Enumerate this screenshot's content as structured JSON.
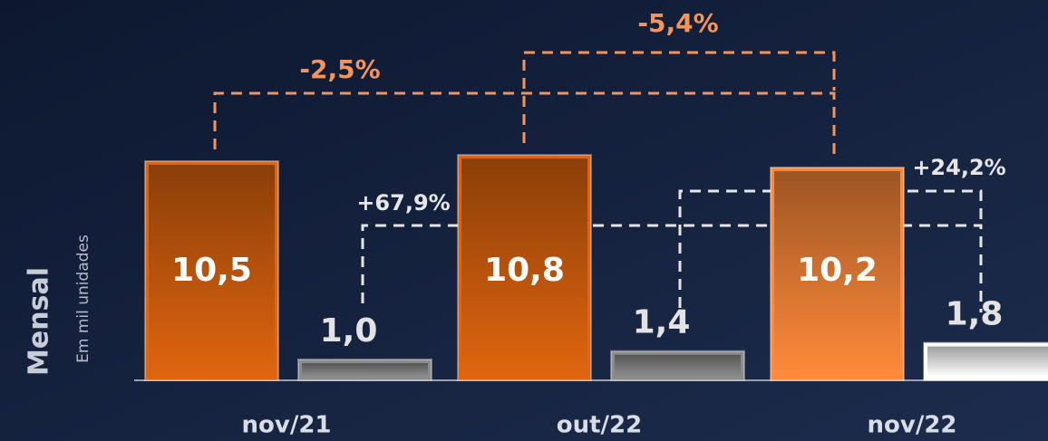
{
  "chart_data": {
    "type": "bar",
    "axis_title": "Mensal",
    "axis_subtitle": "Em mil unidades",
    "categories": [
      "nov/21",
      "out/22",
      "nov/22"
    ],
    "series": [
      {
        "colors": [
          "#e0650f",
          "#e0650f",
          "#ff8a3a"
        ],
        "values": [
          10.5,
          10.8,
          10.2
        ],
        "value_labels": [
          "10,5",
          "10,8",
          "10,2"
        ]
      },
      {
        "colors": [
          "#8c8c8c",
          "#8c8c8c",
          "#ffffff"
        ],
        "values": [
          1.0,
          1.4,
          1.8
        ],
        "value_labels": [
          "1,0",
          "1,4",
          "1,8"
        ]
      }
    ],
    "annotations": [
      "-2,5%",
      "-5,4%",
      "+67,9%",
      "+24,2%"
    ]
  }
}
